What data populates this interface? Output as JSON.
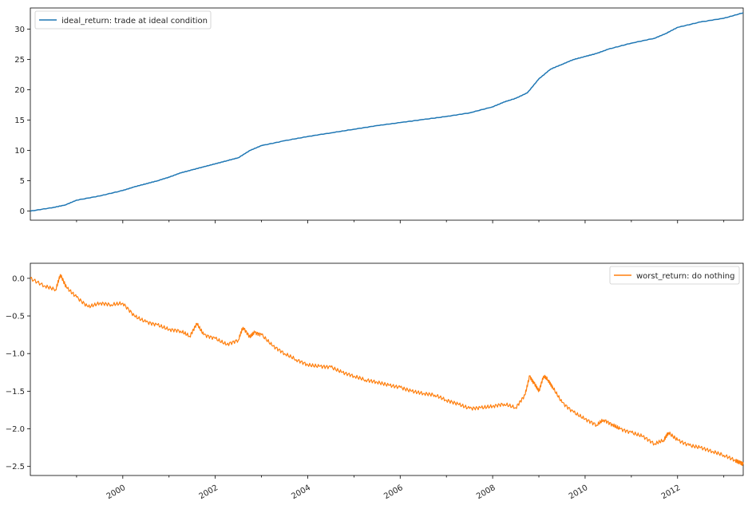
{
  "chart_data": [
    {
      "type": "line",
      "title": "",
      "xlabel": "",
      "ylabel": "",
      "xlim": [
        1998.0,
        2013.42
      ],
      "ylim": [
        -1.5,
        33.5
      ],
      "yticks": [
        0,
        5,
        10,
        15,
        20,
        25,
        30
      ],
      "grid": false,
      "legend": "top-left",
      "series": [
        {
          "name": "ideal_return: trade at ideal condition",
          "color": "#1f77b4",
          "x": [
            1998.0,
            1998.5,
            1998.75,
            1999.0,
            1999.5,
            2000.0,
            2000.25,
            2000.5,
            2000.75,
            2001.0,
            2001.25,
            2001.5,
            2001.75,
            2002.0,
            2002.25,
            2002.5,
            2002.75,
            2003.0,
            2003.5,
            2004.0,
            2004.5,
            2005.0,
            2005.5,
            2006.0,
            2006.5,
            2007.0,
            2007.5,
            2008.0,
            2008.25,
            2008.5,
            2008.75,
            2009.0,
            2009.25,
            2009.5,
            2009.75,
            2010.0,
            2010.25,
            2010.5,
            2011.0,
            2011.5,
            2011.75,
            2012.0,
            2012.5,
            2013.0,
            2013.42
          ],
          "y": [
            0.0,
            0.6,
            1.0,
            1.8,
            2.5,
            3.4,
            4.0,
            4.5,
            5.0,
            5.6,
            6.3,
            6.8,
            7.3,
            7.8,
            8.3,
            8.8,
            10.0,
            10.8,
            11.6,
            12.3,
            12.9,
            13.5,
            14.1,
            14.6,
            15.1,
            15.6,
            16.2,
            17.2,
            18.0,
            18.6,
            19.5,
            21.8,
            23.4,
            24.2,
            25.0,
            25.5,
            26.0,
            26.7,
            27.7,
            28.5,
            29.3,
            30.3,
            31.2,
            31.8,
            32.7
          ]
        }
      ]
    },
    {
      "type": "line",
      "title": "",
      "xlabel": "",
      "ylabel": "",
      "xlim": [
        1998.0,
        2013.42
      ],
      "ylim": [
        -2.62,
        0.2
      ],
      "yticks": [
        0.0,
        -0.5,
        -1.0,
        -1.5,
        -2.0,
        -2.5
      ],
      "ytick_labels": [
        "0.0",
        "−0.5",
        "−1.0",
        "−1.5",
        "−2.0",
        "−2.5"
      ],
      "xticks": [
        2000,
        2002,
        2004,
        2006,
        2008,
        2010,
        2012
      ],
      "xtick_labels": [
        "2000",
        "2002",
        "2004",
        "2006",
        "2008",
        "2010",
        "2012"
      ],
      "grid": false,
      "legend": "top-right",
      "series": [
        {
          "name": "worst_return: do nothing",
          "color": "#ff7f0e",
          "x": [
            1998.0,
            1998.3,
            1998.55,
            1998.65,
            1998.78,
            1999.0,
            1999.25,
            1999.5,
            1999.75,
            2000.0,
            2000.25,
            2000.5,
            2000.75,
            2001.0,
            2001.25,
            2001.45,
            2001.6,
            2001.75,
            2002.0,
            2002.25,
            2002.5,
            2002.6,
            2002.75,
            2002.85,
            2003.0,
            2003.25,
            2003.5,
            2003.75,
            2004.0,
            2004.25,
            2004.5,
            2004.75,
            2005.0,
            2005.25,
            2005.5,
            2005.75,
            2006.0,
            2006.25,
            2006.5,
            2006.75,
            2007.0,
            2007.25,
            2007.5,
            2007.75,
            2008.0,
            2008.25,
            2008.5,
            2008.7,
            2008.8,
            2008.9,
            2009.0,
            2009.1,
            2009.2,
            2009.3,
            2009.5,
            2009.75,
            2010.0,
            2010.25,
            2010.4,
            2010.6,
            2010.75,
            2011.0,
            2011.25,
            2011.5,
            2011.7,
            2011.8,
            2012.0,
            2012.25,
            2012.5,
            2012.75,
            2013.0,
            2013.25,
            2013.35,
            2013.42
          ],
          "y": [
            0.0,
            -0.1,
            -0.15,
            0.05,
            -0.12,
            -0.25,
            -0.38,
            -0.33,
            -0.35,
            -0.33,
            -0.5,
            -0.58,
            -0.62,
            -0.68,
            -0.7,
            -0.77,
            -0.6,
            -0.75,
            -0.8,
            -0.88,
            -0.82,
            -0.65,
            -0.78,
            -0.72,
            -0.75,
            -0.9,
            -1.0,
            -1.08,
            -1.15,
            -1.17,
            -1.18,
            -1.25,
            -1.3,
            -1.35,
            -1.38,
            -1.42,
            -1.45,
            -1.5,
            -1.53,
            -1.55,
            -1.62,
            -1.67,
            -1.73,
            -1.72,
            -1.7,
            -1.67,
            -1.72,
            -1.55,
            -1.3,
            -1.4,
            -1.5,
            -1.3,
            -1.35,
            -1.45,
            -1.65,
            -1.78,
            -1.87,
            -1.95,
            -1.88,
            -1.95,
            -2.0,
            -2.05,
            -2.1,
            -2.2,
            -2.15,
            -2.05,
            -2.15,
            -2.22,
            -2.25,
            -2.3,
            -2.35,
            -2.42,
            -2.45,
            -2.47
          ]
        }
      ]
    }
  ]
}
